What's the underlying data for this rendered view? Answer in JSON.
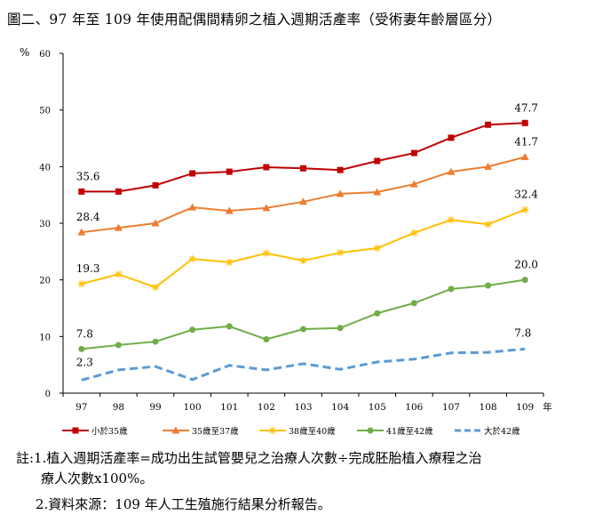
{
  "title": "圖二、97 年至  109 年使用配偶間精卵之植入週期活產率（受術妻年齡層區分）",
  "notes": {
    "note1_line1": "註:1.植入週期活產率=成功出生試管嬰兒之治療人次數÷完成胚胎植入療程之治",
    "note1_line2": "療人次數x100%。",
    "note2": "2.資料來源：109 年人工生殖施行結果分析報告。"
  },
  "chart_data": {
    "type": "line",
    "title": "",
    "ylabel": "%",
    "xlabel": "年",
    "ylim": [
      0,
      60
    ],
    "yticks": [
      0,
      10,
      20,
      30,
      40,
      50,
      60
    ],
    "categories": [
      "97",
      "98",
      "99",
      "100",
      "101",
      "102",
      "103",
      "104",
      "105",
      "106",
      "107",
      "108",
      "109"
    ],
    "grid": false,
    "legend_placement": "bottom",
    "series": [
      {
        "name": "小於35歲",
        "color": "#C00000",
        "marker": "square",
        "dashed": false,
        "values": [
          35.6,
          35.6,
          36.7,
          38.8,
          39.1,
          39.9,
          39.7,
          39.4,
          41.0,
          42.4,
          45.1,
          47.4,
          47.7
        ],
        "labels": {
          "first": "35.6",
          "last": "47.7"
        }
      },
      {
        "name": "35歲至37歲",
        "color": "#ED7D31",
        "marker": "triangle",
        "dashed": false,
        "values": [
          28.4,
          29.2,
          30.0,
          32.8,
          32.2,
          32.7,
          33.8,
          35.2,
          35.5,
          36.9,
          39.1,
          40.0,
          41.7
        ],
        "labels": {
          "first": "28.4",
          "last": "41.7"
        }
      },
      {
        "name": "38歲至40歲",
        "color": "#FFC000",
        "marker": "star",
        "dashed": false,
        "values": [
          19.3,
          21.0,
          18.7,
          23.7,
          23.1,
          24.7,
          23.4,
          24.8,
          25.6,
          28.3,
          30.6,
          29.8,
          32.4
        ],
        "labels": {
          "first": "19.3",
          "last": "32.4"
        }
      },
      {
        "name": "41歲至42歲",
        "color": "#70AD47",
        "marker": "circle",
        "dashed": false,
        "values": [
          7.8,
          8.5,
          9.1,
          11.2,
          11.8,
          9.5,
          11.3,
          11.5,
          14.1,
          15.9,
          18.4,
          19.0,
          20.0
        ],
        "labels": {
          "first": "7.8",
          "last": "20.0"
        }
      },
      {
        "name": "大於42歲",
        "color": "#5B9BD5",
        "marker": "none",
        "dashed": true,
        "values": [
          2.3,
          4.1,
          4.7,
          2.4,
          4.9,
          4.1,
          5.2,
          4.2,
          5.5,
          6.0,
          7.1,
          7.2,
          7.8
        ],
        "labels": {
          "first": "2.3",
          "last": "7.8"
        }
      }
    ]
  }
}
